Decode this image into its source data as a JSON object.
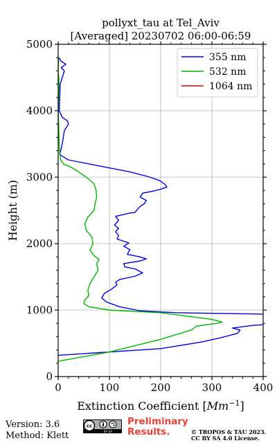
{
  "chart_data": {
    "type": "line",
    "title": "pollyxt_tau at Tel_Aviv",
    "subtitle": "[Averaged] 20230702 06:00-06:59",
    "xlabel": "Extinction Coefficient [Mm^-1]",
    "xlabel_main": "Extinction Coefficient [",
    "xlabel_unit": "Mm",
    "xlabel_exp": "−1",
    "xlabel_close": "]",
    "ylabel": "Height (m)",
    "xlim": [
      0,
      400
    ],
    "ylim": [
      0,
      5000
    ],
    "xticks": [
      "0",
      "100",
      "200",
      "300",
      "400"
    ],
    "yticks": [
      "0",
      "1000",
      "2000",
      "3000",
      "4000",
      "5000"
    ],
    "grid": true,
    "legend_position": "top-right",
    "series": [
      {
        "name": "355 nm",
        "color": "#0000dd",
        "points": [
          [
            400,
            940
          ],
          [
            320,
            950
          ],
          [
            230,
            960
          ],
          [
            160,
            990
          ],
          [
            120,
            1050
          ],
          [
            95,
            1120
          ],
          [
            85,
            1180
          ],
          [
            90,
            1250
          ],
          [
            105,
            1320
          ],
          [
            115,
            1380
          ],
          [
            112,
            1420
          ],
          [
            120,
            1460
          ],
          [
            150,
            1510
          ],
          [
            165,
            1560
          ],
          [
            150,
            1620
          ],
          [
            130,
            1650
          ],
          [
            128,
            1700
          ],
          [
            160,
            1740
          ],
          [
            172,
            1770
          ],
          [
            160,
            1800
          ],
          [
            135,
            1840
          ],
          [
            140,
            1910
          ],
          [
            128,
            1960
          ],
          [
            138,
            2010
          ],
          [
            115,
            2070
          ],
          [
            118,
            2120
          ],
          [
            112,
            2180
          ],
          [
            118,
            2230
          ],
          [
            110,
            2280
          ],
          [
            118,
            2350
          ],
          [
            112,
            2410
          ],
          [
            140,
            2460
          ],
          [
            150,
            2470
          ],
          [
            155,
            2520
          ],
          [
            160,
            2560
          ],
          [
            168,
            2600
          ],
          [
            172,
            2650
          ],
          [
            160,
            2700
          ],
          [
            165,
            2760
          ],
          [
            185,
            2790
          ],
          [
            200,
            2820
          ],
          [
            212,
            2850
          ],
          [
            210,
            2880
          ],
          [
            205,
            2910
          ],
          [
            198,
            2950
          ],
          [
            175,
            3010
          ],
          [
            140,
            3080
          ],
          [
            100,
            3140
          ],
          [
            60,
            3200
          ],
          [
            20,
            3260
          ],
          [
            5,
            3330
          ],
          [
            3,
            3350
          ],
          [
            5,
            3400
          ],
          [
            8,
            3500
          ],
          [
            10,
            3600
          ],
          [
            12,
            3700
          ],
          [
            20,
            3800
          ],
          [
            18,
            3850
          ],
          [
            8,
            3900
          ],
          [
            5,
            3950
          ],
          [
            2,
            4000
          ],
          [
            4,
            4400
          ],
          [
            12,
            4600
          ],
          [
            6,
            4650
          ],
          [
            15,
            4700
          ],
          [
            5,
            4750
          ],
          [
            2,
            4800
          ]
        ],
        "low_segment": [
          [
            0,
            320
          ],
          [
            200,
            420
          ],
          [
            280,
            520
          ],
          [
            320,
            590
          ],
          [
            350,
            650
          ],
          [
            355,
            700
          ],
          [
            340,
            730
          ],
          [
            380,
            770
          ],
          [
            400,
            780
          ]
        ]
      },
      {
        "name": "532 nm",
        "color": "#00b400",
        "points": [
          [
            0,
            230
          ],
          [
            100,
            370
          ],
          [
            200,
            560
          ],
          [
            260,
            700
          ],
          [
            270,
            760
          ],
          [
            310,
            800
          ],
          [
            320,
            820
          ],
          [
            300,
            860
          ],
          [
            240,
            920
          ],
          [
            200,
            960
          ],
          [
            100,
            1000
          ],
          [
            60,
            1050
          ],
          [
            50,
            1100
          ],
          [
            52,
            1150
          ],
          [
            60,
            1220
          ],
          [
            58,
            1300
          ],
          [
            62,
            1400
          ],
          [
            70,
            1500
          ],
          [
            78,
            1600
          ],
          [
            75,
            1700
          ],
          [
            80,
            1760
          ],
          [
            70,
            1820
          ],
          [
            62,
            1900
          ],
          [
            68,
            2000
          ],
          [
            66,
            2100
          ],
          [
            55,
            2200
          ],
          [
            52,
            2300
          ],
          [
            58,
            2400
          ],
          [
            70,
            2500
          ],
          [
            72,
            2600
          ],
          [
            75,
            2700
          ],
          [
            74,
            2800
          ],
          [
            70,
            2900
          ],
          [
            55,
            3000
          ],
          [
            40,
            3080
          ],
          [
            25,
            3150
          ],
          [
            10,
            3200
          ],
          [
            5,
            3260
          ],
          [
            3,
            3350
          ],
          [
            2,
            3500
          ],
          [
            1,
            3800
          ],
          [
            0,
            4000
          ],
          [
            1,
            4200
          ],
          [
            2,
            4400
          ],
          [
            0,
            4600
          ],
          [
            1,
            4800
          ]
        ]
      },
      {
        "name": "1064 nm",
        "color": "#dd0000",
        "points": []
      }
    ]
  },
  "footer": {
    "version": "Version: 3.6",
    "method": "Method: Klett",
    "prelim_line1": "Preliminary",
    "prelim_line2": "Results.",
    "copyright_line1": "© TROPOS & TAU 2023.",
    "copyright_line2": "CC BY SA 4.0 License."
  },
  "badge": {
    "icon": "cc-by-sa-icon",
    "text": "BY   SA"
  }
}
